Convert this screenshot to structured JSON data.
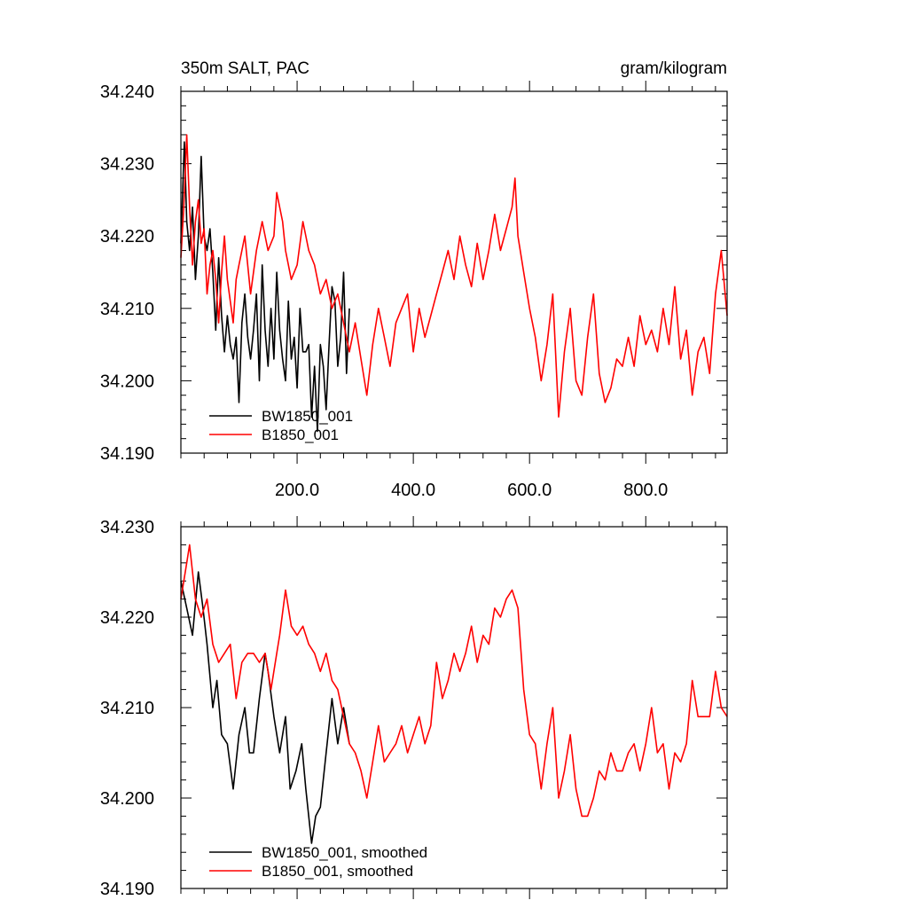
{
  "chart_data": [
    {
      "type": "line",
      "title": "350m SALT, PAC",
      "units": "gram/kilogram",
      "xlabel": "",
      "ylabel": "",
      "xlim": [
        0,
        940
      ],
      "ylim": [
        34.19,
        34.24
      ],
      "x_ticks": [
        200,
        400,
        600,
        800
      ],
      "x_tick_labels": [
        "200.0",
        "400.0",
        "600.0",
        "800.0"
      ],
      "y_ticks": [
        34.19,
        34.2,
        34.21,
        34.22,
        34.23,
        34.24
      ],
      "y_tick_labels": [
        "34.190",
        "34.200",
        "34.210",
        "34.220",
        "34.230",
        "34.240"
      ],
      "grid": false,
      "legend": "bottom-left",
      "series": [
        {
          "name": "BW1850_001",
          "color": "#000000",
          "x": [
            0,
            6,
            10,
            15,
            20,
            25,
            30,
            35,
            40,
            45,
            50,
            55,
            60,
            65,
            70,
            75,
            80,
            85,
            90,
            95,
            100,
            105,
            110,
            115,
            120,
            125,
            130,
            135,
            140,
            145,
            150,
            155,
            160,
            165,
            170,
            175,
            180,
            185,
            190,
            195,
            200,
            205,
            210,
            215,
            220,
            225,
            230,
            235,
            240,
            245,
            250,
            255,
            260,
            265,
            270,
            275,
            280,
            285,
            290
          ],
          "values": [
            34.219,
            34.233,
            34.222,
            34.218,
            34.224,
            34.214,
            34.22,
            34.231,
            34.22,
            34.218,
            34.221,
            34.215,
            34.207,
            34.217,
            34.209,
            34.204,
            34.209,
            34.205,
            34.203,
            34.206,
            34.197,
            34.208,
            34.212,
            34.206,
            34.203,
            34.207,
            34.212,
            34.2,
            34.216,
            34.207,
            34.202,
            34.21,
            34.203,
            34.215,
            34.207,
            34.203,
            34.2,
            34.211,
            34.203,
            34.206,
            34.199,
            34.21,
            34.204,
            34.204,
            34.205,
            34.195,
            34.202,
            34.193,
            34.205,
            34.202,
            34.196,
            34.205,
            34.213,
            34.211,
            34.202,
            34.206,
            34.215,
            34.201,
            34.21
          ]
        },
        {
          "name": "B1850_001",
          "color": "#ff0000",
          "x": [
            0,
            5,
            10,
            15,
            20,
            25,
            30,
            35,
            40,
            45,
            50,
            55,
            60,
            65,
            70,
            75,
            80,
            85,
            90,
            95,
            100,
            110,
            120,
            130,
            140,
            150,
            160,
            165,
            170,
            175,
            180,
            190,
            200,
            210,
            220,
            230,
            240,
            250,
            260,
            270,
            280,
            290,
            300,
            310,
            320,
            330,
            340,
            350,
            360,
            370,
            380,
            390,
            400,
            410,
            420,
            430,
            440,
            450,
            460,
            470,
            480,
            490,
            500,
            510,
            520,
            530,
            540,
            550,
            560,
            570,
            575,
            580,
            590,
            600,
            610,
            620,
            630,
            640,
            650,
            660,
            670,
            680,
            690,
            700,
            710,
            720,
            730,
            740,
            750,
            760,
            770,
            780,
            790,
            800,
            810,
            820,
            830,
            840,
            850,
            860,
            870,
            880,
            890,
            900,
            910,
            920,
            930,
            940
          ],
          "values": [
            34.217,
            34.224,
            34.234,
            34.224,
            34.216,
            34.222,
            34.225,
            34.219,
            34.221,
            34.212,
            34.216,
            34.218,
            34.214,
            34.208,
            34.215,
            34.22,
            34.214,
            34.211,
            34.208,
            34.214,
            34.216,
            34.22,
            34.212,
            34.218,
            34.222,
            34.218,
            34.22,
            34.226,
            34.224,
            34.222,
            34.218,
            34.214,
            34.216,
            34.222,
            34.218,
            34.216,
            34.212,
            34.214,
            34.21,
            34.212,
            34.208,
            34.204,
            34.208,
            34.203,
            34.198,
            34.205,
            34.21,
            34.206,
            34.202,
            34.208,
            34.21,
            34.212,
            34.204,
            34.21,
            34.206,
            34.209,
            34.212,
            34.215,
            34.218,
            34.214,
            34.22,
            34.216,
            34.213,
            34.219,
            34.214,
            34.218,
            34.223,
            34.218,
            34.221,
            34.224,
            34.228,
            34.22,
            34.215,
            34.21,
            34.206,
            34.2,
            34.205,
            34.212,
            34.195,
            34.204,
            34.21,
            34.2,
            34.198,
            34.206,
            34.212,
            34.201,
            34.197,
            34.199,
            34.203,
            34.202,
            34.206,
            34.202,
            34.209,
            34.205,
            34.207,
            34.204,
            34.21,
            34.205,
            34.213,
            34.203,
            34.207,
            34.198,
            34.204,
            34.206,
            34.201,
            34.212,
            34.218,
            34.209
          ]
        }
      ]
    },
    {
      "type": "line",
      "title": "",
      "xlabel": "",
      "ylabel": "",
      "xlim": [
        0,
        940
      ],
      "ylim": [
        34.19,
        34.23
      ],
      "x_ticks": [
        200,
        400,
        600,
        800
      ],
      "x_tick_labels": [],
      "y_ticks": [
        34.19,
        34.2,
        34.21,
        34.22,
        34.23
      ],
      "y_tick_labels": [
        "34.190",
        "34.200",
        "34.210",
        "34.220",
        "34.230"
      ],
      "grid": false,
      "legend": "bottom-left",
      "series": [
        {
          "name": "BW1850_001, smoothed",
          "color": "#000000",
          "x": [
            0,
            10,
            20,
            30,
            38,
            45,
            55,
            62,
            70,
            80,
            90,
            100,
            110,
            118,
            125,
            135,
            145,
            150,
            160,
            170,
            180,
            188,
            198,
            208,
            215,
            225,
            232,
            240,
            250,
            260,
            270,
            280,
            290
          ],
          "values": [
            34.224,
            34.221,
            34.218,
            34.225,
            34.221,
            34.217,
            34.21,
            34.213,
            34.207,
            34.206,
            34.201,
            34.207,
            34.21,
            34.205,
            34.205,
            34.211,
            34.216,
            34.214,
            34.209,
            34.205,
            34.209,
            34.201,
            34.203,
            34.206,
            34.201,
            34.195,
            34.198,
            34.199,
            34.205,
            34.211,
            34.206,
            34.21,
            34.206
          ]
        },
        {
          "name": "B1850_001, smoothed",
          "color": "#ff0000",
          "x": [
            0,
            10,
            15,
            25,
            35,
            45,
            55,
            65,
            75,
            85,
            95,
            105,
            115,
            125,
            135,
            145,
            155,
            165,
            170,
            180,
            190,
            200,
            210,
            220,
            230,
            240,
            250,
            260,
            270,
            280,
            290,
            300,
            310,
            320,
            330,
            340,
            350,
            360,
            370,
            380,
            390,
            400,
            410,
            420,
            430,
            440,
            450,
            460,
            470,
            480,
            490,
            500,
            510,
            520,
            530,
            540,
            550,
            560,
            570,
            580,
            590,
            600,
            610,
            620,
            630,
            640,
            650,
            660,
            670,
            680,
            690,
            700,
            710,
            720,
            730,
            740,
            750,
            760,
            770,
            780,
            790,
            800,
            810,
            820,
            830,
            840,
            850,
            860,
            870,
            880,
            890,
            900,
            910,
            920,
            930,
            940
          ],
          "values": [
            34.222,
            34.226,
            34.228,
            34.222,
            34.22,
            34.222,
            34.217,
            34.215,
            34.216,
            34.217,
            34.211,
            34.215,
            34.216,
            34.216,
            34.215,
            34.216,
            34.212,
            34.216,
            34.218,
            34.223,
            34.219,
            34.218,
            34.219,
            34.217,
            34.216,
            34.214,
            34.216,
            34.213,
            34.212,
            34.209,
            34.206,
            34.205,
            34.203,
            34.2,
            34.204,
            34.208,
            34.204,
            34.205,
            34.206,
            34.208,
            34.205,
            34.207,
            34.209,
            34.206,
            34.208,
            34.215,
            34.211,
            34.213,
            34.216,
            34.214,
            34.216,
            34.219,
            34.215,
            34.218,
            34.217,
            34.221,
            34.22,
            34.222,
            34.223,
            34.221,
            34.212,
            34.207,
            34.206,
            34.201,
            34.206,
            34.21,
            34.2,
            34.203,
            34.207,
            34.201,
            34.198,
            34.198,
            34.2,
            34.203,
            34.202,
            34.205,
            34.203,
            34.203,
            34.205,
            34.206,
            34.203,
            34.206,
            34.21,
            34.205,
            34.206,
            34.201,
            34.205,
            34.204,
            34.206,
            34.213,
            34.209,
            34.209,
            34.209,
            34.214,
            34.21,
            34.209
          ]
        }
      ]
    }
  ]
}
